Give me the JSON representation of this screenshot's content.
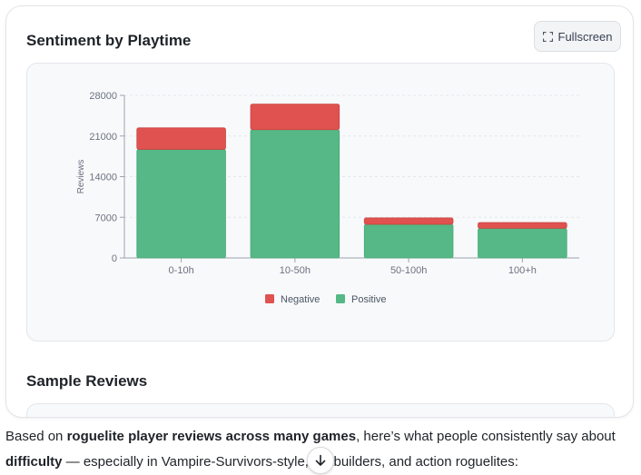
{
  "card": {
    "title": "Sentiment by Playtime",
    "fullscreen_label": "Fullscreen"
  },
  "chart_data": {
    "type": "bar",
    "stacked": true,
    "categories": [
      "0-10h",
      "10-50h",
      "50-100h",
      "100+h"
    ],
    "series": [
      {
        "name": "Positive",
        "color": "#55b886",
        "values": [
          18700,
          22100,
          5800,
          5100
        ]
      },
      {
        "name": "Negative",
        "color": "#e0524f",
        "values": [
          3700,
          4400,
          1100,
          1000
        ]
      }
    ],
    "yticks": [
      0,
      7000,
      14000,
      21000,
      28000
    ],
    "ylim": [
      0,
      28000
    ],
    "ylabel": "Reviews",
    "xlabel": "",
    "legend": [
      "Negative",
      "Positive"
    ],
    "legend_position": "bottom",
    "grid": true
  },
  "samples": {
    "title": "Sample Reviews"
  },
  "paragraph": {
    "t1": "Based on ",
    "b1": "roguelite player reviews across many games",
    "t2": ", here’s what people consistently say about ",
    "b2": "difficulty",
    "t3": " — especially in Vampire-Survivors-style, d",
    "t4": "ckbuilders, and action roguelites:"
  },
  "icons": {
    "fullscreen": "expand-icon",
    "scroll": "arrow-down-icon"
  }
}
